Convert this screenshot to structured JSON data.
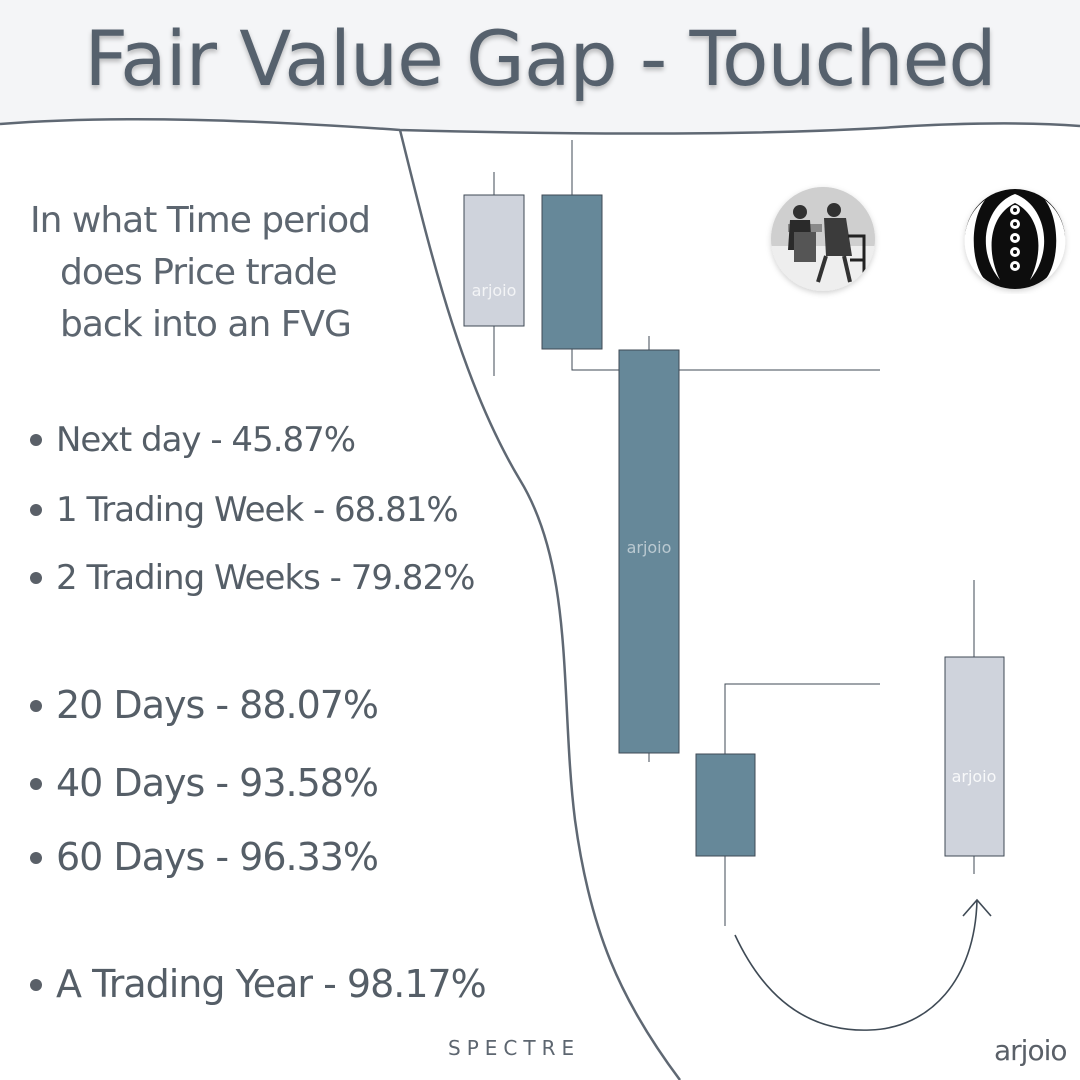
{
  "title": "Fair Value Gap - Touched",
  "question": [
    "In what Time period",
    "does Price trade",
    "back into an FVG"
  ],
  "stats": [
    {
      "label": "Next day - 45.87%"
    },
    {
      "label": "1 Trading Week - 68.81%"
    },
    {
      "label": "2 Trading Weeks - 79.82%"
    },
    {
      "label": "20 Days - 88.07%"
    },
    {
      "label": "40 Days - 93.58%"
    },
    {
      "label": "60 Days - 96.33%"
    },
    {
      "label": "A Trading Year - 98.17%"
    }
  ],
  "watermark": "arjoio",
  "footer": {
    "brand": "SPECTRE",
    "handle": "arjoio"
  },
  "colors": {
    "bullish": "#cfd3dc",
    "bearish": "#668899",
    "text": "#56616d",
    "line": "#3f4a55"
  },
  "icons": {
    "left_logo": "chess-players-photo-icon",
    "right_logo": "tribal-emblem-icon",
    "arrow": "curved-arrow-icon"
  }
}
